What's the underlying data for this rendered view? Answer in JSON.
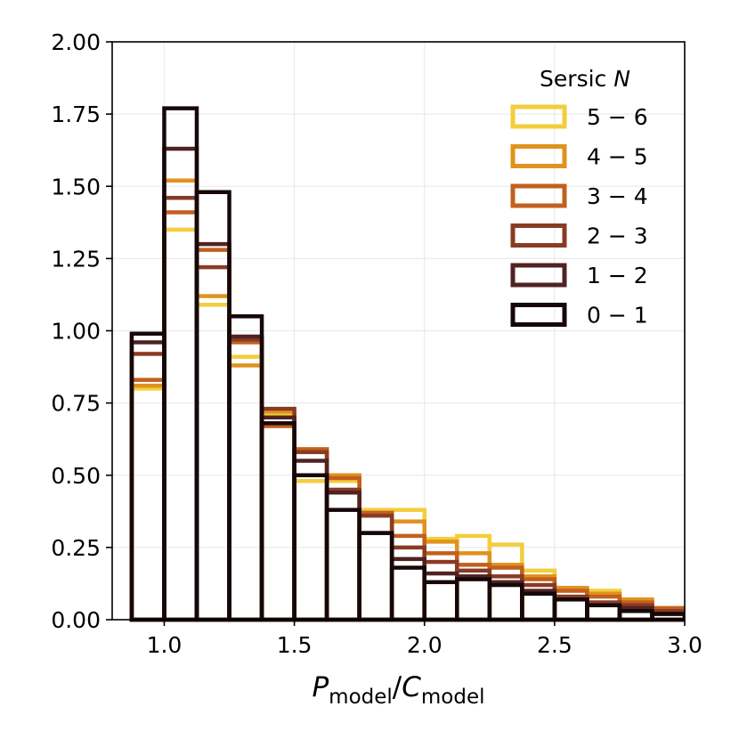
{
  "chart_data": {
    "type": "histogram",
    "xlim": [
      0.8,
      3.0
    ],
    "ylim": [
      0.0,
      2.0
    ],
    "grid": true,
    "legend_placement": "top-right",
    "xlabel": {
      "main_1": "P",
      "sub_1": "model",
      "sep": "/",
      "main_2": "C",
      "sub_2": "model"
    },
    "ylabel": "",
    "xticks": [
      {
        "value": 1.0,
        "label": "1.0"
      },
      {
        "value": 1.5,
        "label": "1.5"
      },
      {
        "value": 2.0,
        "label": "2.0"
      },
      {
        "value": 2.5,
        "label": "2.5"
      },
      {
        "value": 3.0,
        "label": "3.0"
      }
    ],
    "yticks": [
      {
        "value": 0.0,
        "label": "0.00"
      },
      {
        "value": 0.25,
        "label": "0.25"
      },
      {
        "value": 0.5,
        "label": "0.50"
      },
      {
        "value": 0.75,
        "label": "0.75"
      },
      {
        "value": 1.0,
        "label": "1.00"
      },
      {
        "value": 1.25,
        "label": "1.25"
      },
      {
        "value": 1.5,
        "label": "1.50"
      },
      {
        "value": 1.75,
        "label": "1.75"
      },
      {
        "value": 2.0,
        "label": "2.00"
      }
    ],
    "bin_edges": [
      0.75,
      0.875,
      1.0,
      1.125,
      1.25,
      1.375,
      1.5,
      1.625,
      1.75,
      1.875,
      2.0,
      2.125,
      2.25,
      2.375,
      2.5,
      2.625,
      2.75,
      2.875,
      3.0
    ],
    "legend_title": {
      "text": "Sersic ",
      "italic": "N"
    },
    "series": [
      {
        "name": "0 − 1",
        "color": "#160808",
        "values": [
          0.0,
          0.99,
          1.77,
          1.48,
          1.05,
          0.68,
          0.5,
          0.38,
          0.3,
          0.18,
          0.13,
          0.14,
          0.12,
          0.09,
          0.07,
          0.05,
          0.03,
          0.02
        ]
      },
      {
        "name": "1 − 2",
        "color": "#512222",
        "values": [
          0.0,
          0.96,
          1.63,
          1.3,
          0.98,
          0.7,
          0.55,
          0.44,
          0.3,
          0.21,
          0.16,
          0.15,
          0.13,
          0.1,
          0.07,
          0.05,
          0.04,
          0.02
        ]
      },
      {
        "name": "2 − 3",
        "color": "#8a3b24",
        "values": [
          0.0,
          0.92,
          1.46,
          1.22,
          0.97,
          0.73,
          0.58,
          0.45,
          0.36,
          0.25,
          0.2,
          0.17,
          0.15,
          0.12,
          0.08,
          0.06,
          0.05,
          0.03
        ]
      },
      {
        "name": "3 − 4",
        "color": "#c2601e",
        "values": [
          0.0,
          0.83,
          1.41,
          1.28,
          0.96,
          0.67,
          0.59,
          0.49,
          0.37,
          0.29,
          0.23,
          0.19,
          0.18,
          0.14,
          0.1,
          0.08,
          0.06,
          0.04
        ]
      },
      {
        "name": "4 − 5",
        "color": "#e0921e",
        "values": [
          0.0,
          0.81,
          1.52,
          1.12,
          0.88,
          0.72,
          0.59,
          0.5,
          0.37,
          0.34,
          0.27,
          0.23,
          0.19,
          0.15,
          0.11,
          0.09,
          0.07,
          0.04
        ]
      },
      {
        "name": "5 − 6",
        "color": "#f2ce3c",
        "values": [
          0.0,
          0.8,
          1.35,
          1.09,
          0.91,
          0.71,
          0.48,
          0.48,
          0.38,
          0.38,
          0.28,
          0.29,
          0.26,
          0.17,
          0.11,
          0.1,
          0.07,
          0.04
        ]
      }
    ]
  }
}
